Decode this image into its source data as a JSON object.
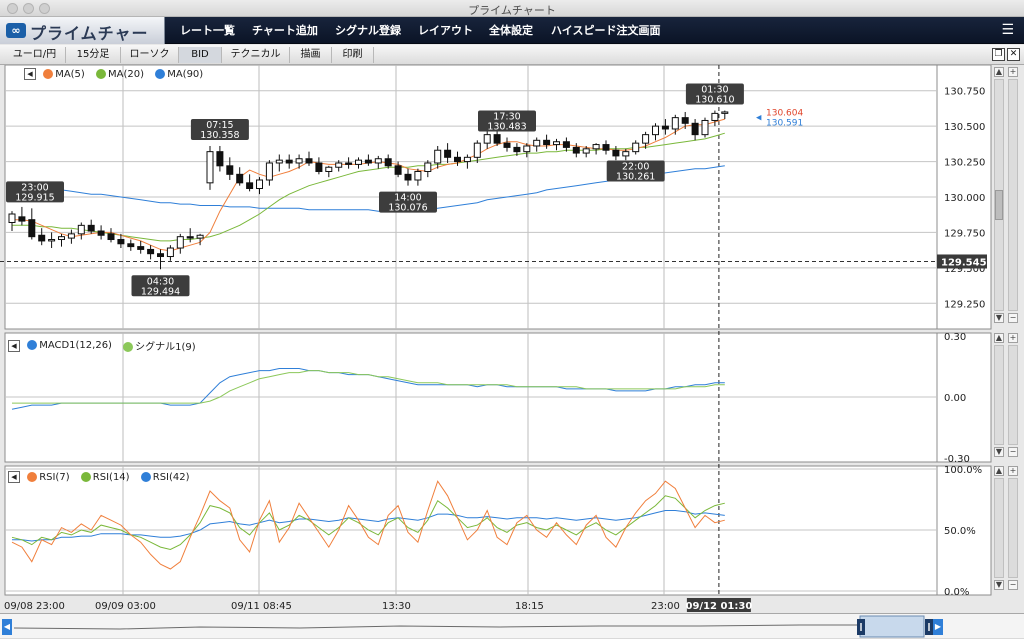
{
  "window": {
    "title": "プライムチャート"
  },
  "app": {
    "logo_text": "プライムチャート"
  },
  "nav": {
    "items": [
      "レート一覧",
      "チャート追加",
      "シグナル登録",
      "レイアウト",
      "全体設定",
      "ハイスピード注文画面"
    ],
    "menu_icon": "hamburger-icon"
  },
  "toolbar": {
    "items": [
      "ユーロ/円",
      "15分足",
      "ローソク",
      "BID",
      "テクニカル",
      "描画",
      "印刷"
    ]
  },
  "price_panel": {
    "legend": [
      "MA(5)",
      "MA(20)",
      "MA(90)"
    ],
    "legend_colors": [
      "#f07f3c",
      "#7ab83a",
      "#2f7fd8"
    ],
    "axis_labels": [
      "130.750",
      "130.500",
      "130.250",
      "130.000",
      "129.750",
      "129.500",
      "129.250"
    ],
    "current_price": "129.545",
    "price_red": "130.604",
    "price_blue": "130.591",
    "callouts": [
      {
        "time": "23:00",
        "price": "129.915"
      },
      {
        "time": "07:15",
        "price": "130.358"
      },
      {
        "time": "04:30",
        "price": "129.494"
      },
      {
        "time": "14:00",
        "price": "130.076"
      },
      {
        "time": "17:30",
        "price": "130.483"
      },
      {
        "time": "22:00",
        "price": "130.261"
      },
      {
        "time": "01:30",
        "price": "130.610"
      }
    ]
  },
  "macd_panel": {
    "legend": [
      "MACD1(12,26)",
      "シグナル1(9)"
    ],
    "legend_colors": [
      "#2f7fd8",
      "#8cc85a"
    ],
    "axis_labels": [
      "0.30",
      "0.00",
      "-0.30"
    ]
  },
  "rsi_panel": {
    "legend": [
      "RSI(7)",
      "RSI(14)",
      "RSI(42)"
    ],
    "legend_colors": [
      "#f07f3c",
      "#7ab83a",
      "#2f7fd8"
    ],
    "axis_labels": [
      "100.0%",
      "50.0%",
      "0.0%"
    ]
  },
  "time_axis": {
    "labels": [
      "09/08 23:00",
      "09/09 03:00",
      "09/11 08:45",
      "13:30",
      "18:15",
      "23:00"
    ],
    "cursor_label": "09/12 01:30"
  },
  "chart_data": {
    "type": "line",
    "price_ylim": [
      129.125,
      130.875
    ],
    "macd_ylim": [
      -0.3,
      0.3
    ],
    "rsi_ylim": [
      0,
      100
    ],
    "candles": [
      [
        129.82,
        129.9,
        129.76,
        129.88
      ],
      [
        129.86,
        129.93,
        129.8,
        129.83
      ],
      [
        129.84,
        129.92,
        129.7,
        129.72
      ],
      [
        129.73,
        129.78,
        129.66,
        129.69
      ],
      [
        129.69,
        129.75,
        129.64,
        129.7
      ],
      [
        129.7,
        129.74,
        129.65,
        129.72
      ],
      [
        129.71,
        129.77,
        129.67,
        129.74
      ],
      [
        129.74,
        129.82,
        129.7,
        129.8
      ],
      [
        129.8,
        129.84,
        129.74,
        129.76
      ],
      [
        129.76,
        129.8,
        129.7,
        129.73
      ],
      [
        129.74,
        129.78,
        129.68,
        129.7
      ],
      [
        129.7,
        129.74,
        129.64,
        129.67
      ],
      [
        129.67,
        129.7,
        129.62,
        129.65
      ],
      [
        129.65,
        129.69,
        129.6,
        129.63
      ],
      [
        129.63,
        129.66,
        129.56,
        129.6
      ],
      [
        129.6,
        129.63,
        129.49,
        129.58
      ],
      [
        129.58,
        129.66,
        129.55,
        129.64
      ],
      [
        129.64,
        129.74,
        129.6,
        129.72
      ],
      [
        129.72,
        129.78,
        129.68,
        129.71
      ],
      [
        129.71,
        129.74,
        129.66,
        129.73
      ],
      [
        130.1,
        130.36,
        130.05,
        130.32
      ],
      [
        130.32,
        130.36,
        130.18,
        130.22
      ],
      [
        130.22,
        130.28,
        130.12,
        130.16
      ],
      [
        130.16,
        130.21,
        130.08,
        130.1
      ],
      [
        130.1,
        130.16,
        130.04,
        130.06
      ],
      [
        130.06,
        130.14,
        130.02,
        130.12
      ],
      [
        130.12,
        130.26,
        130.08,
        130.24
      ],
      [
        130.24,
        130.3,
        130.18,
        130.26
      ],
      [
        130.26,
        130.3,
        130.2,
        130.24
      ],
      [
        130.24,
        130.3,
        130.2,
        130.27
      ],
      [
        130.27,
        130.32,
        130.22,
        130.24
      ],
      [
        130.24,
        130.28,
        130.16,
        130.18
      ],
      [
        130.18,
        130.22,
        130.14,
        130.21
      ],
      [
        130.21,
        130.26,
        130.18,
        130.24
      ],
      [
        130.24,
        130.28,
        130.2,
        130.23
      ],
      [
        130.23,
        130.28,
        130.2,
        130.26
      ],
      [
        130.26,
        130.3,
        130.22,
        130.24
      ],
      [
        130.24,
        130.29,
        130.2,
        130.27
      ],
      [
        130.27,
        130.3,
        130.2,
        130.22
      ],
      [
        130.22,
        130.25,
        130.14,
        130.16
      ],
      [
        130.16,
        130.2,
        130.08,
        130.12
      ],
      [
        130.12,
        130.2,
        130.08,
        130.18
      ],
      [
        130.18,
        130.26,
        130.14,
        130.24
      ],
      [
        130.24,
        130.36,
        130.2,
        130.33
      ],
      [
        130.33,
        130.38,
        130.24,
        130.28
      ],
      [
        130.28,
        130.32,
        130.22,
        130.25
      ],
      [
        130.25,
        130.3,
        130.2,
        130.28
      ],
      [
        130.28,
        130.4,
        130.24,
        130.38
      ],
      [
        130.38,
        130.48,
        130.34,
        130.44
      ],
      [
        130.44,
        130.48,
        130.36,
        130.38
      ],
      [
        130.38,
        130.42,
        130.32,
        130.35
      ],
      [
        130.35,
        130.38,
        130.29,
        130.32
      ],
      [
        130.32,
        130.38,
        130.28,
        130.36
      ],
      [
        130.36,
        130.42,
        130.32,
        130.4
      ],
      [
        130.4,
        130.44,
        130.34,
        130.37
      ],
      [
        130.37,
        130.41,
        130.33,
        130.39
      ],
      [
        130.39,
        130.42,
        130.32,
        130.35
      ],
      [
        130.35,
        130.38,
        130.28,
        130.31
      ],
      [
        130.31,
        130.36,
        130.28,
        130.34
      ],
      [
        130.34,
        130.38,
        130.3,
        130.37
      ],
      [
        130.37,
        130.4,
        130.3,
        130.33
      ],
      [
        130.33,
        130.36,
        130.26,
        130.29
      ],
      [
        130.29,
        130.34,
        130.26,
        130.32
      ],
      [
        130.32,
        130.4,
        130.3,
        130.38
      ],
      [
        130.38,
        130.46,
        130.34,
        130.44
      ],
      [
        130.44,
        130.52,
        130.4,
        130.5
      ],
      [
        130.5,
        130.55,
        130.44,
        130.48
      ],
      [
        130.48,
        130.58,
        130.44,
        130.56
      ],
      [
        130.56,
        130.6,
        130.48,
        130.52
      ],
      [
        130.52,
        130.55,
        130.4,
        130.44
      ],
      [
        130.44,
        130.56,
        130.42,
        130.54
      ],
      [
        130.54,
        130.61,
        130.5,
        130.59
      ],
      [
        130.59,
        130.61,
        130.55,
        130.6
      ]
    ],
    "ma5": [
      129.84,
      129.84,
      129.83,
      129.8,
      129.77,
      129.74,
      129.72,
      129.73,
      129.74,
      129.75,
      129.75,
      129.73,
      129.71,
      129.69,
      129.66,
      129.63,
      129.62,
      129.64,
      129.66,
      129.68,
      129.75,
      129.9,
      130.02,
      130.14,
      130.19,
      130.16,
      130.14,
      130.16,
      130.18,
      130.21,
      130.25,
      130.24,
      130.23,
      130.23,
      130.23,
      130.23,
      130.24,
      130.25,
      130.24,
      130.23,
      130.2,
      130.19,
      130.18,
      130.21,
      130.23,
      130.24,
      130.27,
      130.3,
      130.34,
      130.37,
      130.39,
      130.39,
      130.37,
      130.36,
      130.36,
      130.37,
      130.37,
      130.36,
      130.35,
      130.34,
      130.34,
      130.33,
      130.33,
      130.34,
      130.36,
      130.39,
      130.42,
      130.46,
      130.5,
      130.51,
      130.51,
      130.53,
      130.55
    ],
    "ma20": [
      129.8,
      129.8,
      129.8,
      129.79,
      129.79,
      129.78,
      129.78,
      129.77,
      129.76,
      129.75,
      129.74,
      129.73,
      129.72,
      129.71,
      129.7,
      129.69,
      129.69,
      129.7,
      129.7,
      129.71,
      129.72,
      129.74,
      129.77,
      129.8,
      129.84,
      129.88,
      129.93,
      129.98,
      130.02,
      130.05,
      130.08,
      130.1,
      130.12,
      130.14,
      130.16,
      130.18,
      130.19,
      130.2,
      130.21,
      130.21,
      130.21,
      130.22,
      130.22,
      130.23,
      130.23,
      130.24,
      130.25,
      130.26,
      130.27,
      130.28,
      130.29,
      130.3,
      130.31,
      130.31,
      130.32,
      130.32,
      130.33,
      130.33,
      130.33,
      130.33,
      130.34,
      130.34,
      130.34,
      130.35,
      130.35,
      130.36,
      130.37,
      130.38,
      130.39,
      130.4,
      130.41,
      130.43,
      130.45
    ],
    "ma90": [
      130.1,
      130.09,
      130.08,
      130.07,
      130.06,
      130.05,
      130.04,
      130.03,
      130.02,
      130.02,
      130.01,
      130.0,
      129.99,
      129.98,
      129.97,
      129.96,
      129.96,
      129.95,
      129.95,
      129.94,
      129.94,
      129.94,
      129.93,
      129.93,
      129.93,
      129.92,
      129.92,
      129.92,
      129.92,
      129.92,
      129.91,
      129.91,
      129.91,
      129.91,
      129.91,
      129.91,
      129.91,
      129.9,
      129.9,
      129.9,
      129.9,
      129.91,
      129.91,
      129.92,
      129.93,
      129.94,
      129.95,
      129.96,
      129.98,
      129.99,
      130.0,
      130.01,
      130.02,
      130.03,
      130.05,
      130.06,
      130.07,
      130.08,
      130.09,
      130.1,
      130.11,
      130.12,
      130.13,
      130.14,
      130.15,
      130.16,
      130.17,
      130.18,
      130.19,
      130.2,
      130.2,
      130.21,
      130.22
    ],
    "macd": [
      -0.06,
      -0.05,
      -0.04,
      -0.04,
      -0.04,
      -0.03,
      -0.03,
      -0.03,
      -0.03,
      -0.03,
      -0.03,
      -0.03,
      -0.03,
      -0.03,
      -0.03,
      -0.03,
      -0.04,
      -0.04,
      -0.04,
      -0.03,
      0.02,
      0.07,
      0.1,
      0.11,
      0.12,
      0.13,
      0.13,
      0.14,
      0.14,
      0.14,
      0.13,
      0.13,
      0.12,
      0.12,
      0.11,
      0.11,
      0.11,
      0.1,
      0.09,
      0.08,
      0.07,
      0.06,
      0.06,
      0.06,
      0.06,
      0.06,
      0.06,
      0.05,
      0.06,
      0.06,
      0.05,
      0.05,
      0.05,
      0.05,
      0.05,
      0.05,
      0.04,
      0.04,
      0.04,
      0.04,
      0.04,
      0.03,
      0.03,
      0.03,
      0.03,
      0.04,
      0.04,
      0.05,
      0.05,
      0.06,
      0.06,
      0.07,
      0.07
    ],
    "signal": [
      -0.03,
      -0.03,
      -0.03,
      -0.03,
      -0.03,
      -0.03,
      -0.03,
      -0.03,
      -0.03,
      -0.03,
      -0.03,
      -0.03,
      -0.03,
      -0.03,
      -0.03,
      -0.03,
      -0.03,
      -0.03,
      -0.03,
      -0.03,
      -0.02,
      0.0,
      0.03,
      0.05,
      0.07,
      0.09,
      0.1,
      0.11,
      0.12,
      0.12,
      0.13,
      0.13,
      0.12,
      0.12,
      0.12,
      0.11,
      0.11,
      0.1,
      0.1,
      0.09,
      0.08,
      0.07,
      0.07,
      0.07,
      0.06,
      0.06,
      0.06,
      0.06,
      0.06,
      0.06,
      0.06,
      0.05,
      0.05,
      0.05,
      0.05,
      0.05,
      0.05,
      0.05,
      0.04,
      0.04,
      0.04,
      0.04,
      0.04,
      0.04,
      0.04,
      0.04,
      0.04,
      0.04,
      0.05,
      0.05,
      0.05,
      0.06,
      0.06
    ],
    "rsi7": [
      40,
      36,
      24,
      42,
      38,
      52,
      48,
      55,
      50,
      62,
      58,
      54,
      46,
      40,
      30,
      22,
      18,
      24,
      44,
      62,
      82,
      74,
      68,
      42,
      32,
      58,
      74,
      40,
      52,
      72,
      60,
      48,
      36,
      50,
      70,
      58,
      44,
      38,
      62,
      70,
      48,
      40,
      66,
      90,
      78,
      60,
      42,
      50,
      66,
      44,
      38,
      56,
      62,
      50,
      44,
      56,
      46,
      38,
      54,
      62,
      44,
      36,
      52,
      64,
      74,
      80,
      90,
      84,
      68,
      52,
      62,
      56,
      58
    ],
    "rsi14": [
      44,
      42,
      38,
      44,
      42,
      48,
      46,
      50,
      48,
      54,
      52,
      50,
      46,
      44,
      40,
      36,
      34,
      38,
      46,
      56,
      70,
      68,
      64,
      52,
      46,
      56,
      64,
      50,
      54,
      62,
      58,
      52,
      46,
      52,
      60,
      56,
      50,
      46,
      56,
      60,
      52,
      48,
      58,
      74,
      68,
      60,
      52,
      54,
      60,
      52,
      48,
      54,
      56,
      52,
      50,
      54,
      50,
      46,
      52,
      56,
      50,
      46,
      52,
      58,
      64,
      70,
      78,
      76,
      68,
      60,
      66,
      70,
      72
    ],
    "rsi42": [
      42,
      42,
      41,
      42,
      42,
      44,
      44,
      45,
      45,
      47,
      47,
      47,
      46,
      46,
      45,
      44,
      44,
      45,
      47,
      50,
      55,
      56,
      57,
      55,
      54,
      56,
      58,
      56,
      57,
      59,
      59,
      58,
      57,
      58,
      60,
      59,
      58,
      57,
      59,
      60,
      59,
      58,
      60,
      63,
      63,
      62,
      60,
      60,
      61,
      60,
      59,
      60,
      60,
      60,
      59,
      60,
      59,
      58,
      59,
      60,
      59,
      58,
      59,
      60,
      62,
      64,
      66,
      66,
      65,
      63,
      64,
      63,
      62
    ]
  }
}
